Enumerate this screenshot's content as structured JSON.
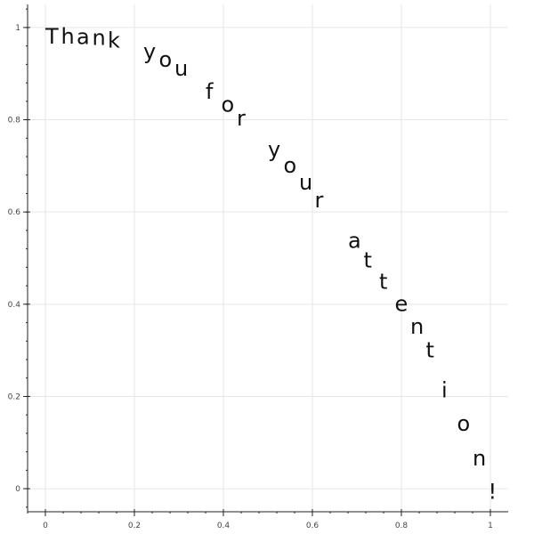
{
  "chart_data": {
    "type": "scatter",
    "title": "",
    "xlabel": "",
    "ylabel": "",
    "xlim": [
      -0.04,
      1.04
    ],
    "ylim": [
      -0.05,
      1.05
    ],
    "grid": true,
    "x_ticks": [
      {
        "value": 0,
        "label": "0"
      },
      {
        "value": 0.2,
        "label": "0.2"
      },
      {
        "value": 0.4,
        "label": "0.4"
      },
      {
        "value": 0.6,
        "label": "0.6"
      },
      {
        "value": 0.8,
        "label": "0.8"
      },
      {
        "value": 1,
        "label": "1"
      }
    ],
    "y_ticks": [
      {
        "value": 0,
        "label": "0"
      },
      {
        "value": 0.2,
        "label": "0.2"
      },
      {
        "value": 0.4,
        "label": "0.4"
      },
      {
        "value": 0.6,
        "label": "0.6"
      },
      {
        "value": 0.8,
        "label": "0.8"
      },
      {
        "value": 1,
        "label": "1"
      }
    ],
    "points": [
      {
        "x": 0.0,
        "y": 1.0,
        "text": "T"
      },
      {
        "x": 0.035,
        "y": 1.0,
        "text": "h"
      },
      {
        "x": 0.07,
        "y": 0.999,
        "text": "a"
      },
      {
        "x": 0.105,
        "y": 0.997,
        "text": "n"
      },
      {
        "x": 0.14,
        "y": 0.991,
        "text": "k"
      },
      {
        "x": 0.22,
        "y": 0.967,
        "text": "y"
      },
      {
        "x": 0.255,
        "y": 0.95,
        "text": "o"
      },
      {
        "x": 0.29,
        "y": 0.93,
        "text": "u"
      },
      {
        "x": 0.36,
        "y": 0.88,
        "text": "f"
      },
      {
        "x": 0.395,
        "y": 0.852,
        "text": "o"
      },
      {
        "x": 0.43,
        "y": 0.822,
        "text": "r"
      },
      {
        "x": 0.5,
        "y": 0.755,
        "text": "y"
      },
      {
        "x": 0.535,
        "y": 0.72,
        "text": "o"
      },
      {
        "x": 0.57,
        "y": 0.683,
        "text": "u"
      },
      {
        "x": 0.605,
        "y": 0.645,
        "text": "r"
      },
      {
        "x": 0.68,
        "y": 0.557,
        "text": "a"
      },
      {
        "x": 0.715,
        "y": 0.514,
        "text": "t"
      },
      {
        "x": 0.75,
        "y": 0.468,
        "text": "t"
      },
      {
        "x": 0.785,
        "y": 0.42,
        "text": "e"
      },
      {
        "x": 0.82,
        "y": 0.371,
        "text": "n"
      },
      {
        "x": 0.855,
        "y": 0.32,
        "text": "t"
      },
      {
        "x": 0.89,
        "y": 0.233,
        "text": "i"
      },
      {
        "x": 0.925,
        "y": 0.16,
        "text": "o"
      },
      {
        "x": 0.96,
        "y": 0.085,
        "text": "n"
      },
      {
        "x": 0.995,
        "y": 0.013,
        "text": "!"
      }
    ]
  },
  "colors": {
    "grid": "#e6e6e6",
    "axis": "#222222",
    "text": "#111111"
  }
}
